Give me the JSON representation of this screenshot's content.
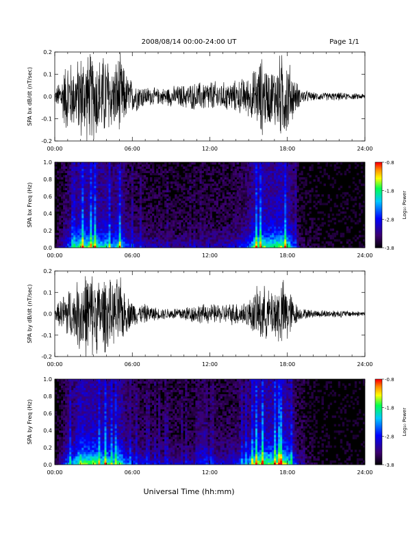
{
  "header": {
    "title": "2008/08/14   00:00-24:00 UT",
    "page": "Page 1/1"
  },
  "xlabel": "Universal Time (hh:mm)",
  "colorbar": {
    "label": "Log₁₀ Power",
    "ticks": [
      "-0.8",
      "-1.8",
      "-2.8",
      "-3.8"
    ],
    "range": [
      -3.8,
      -0.8
    ]
  },
  "chart_data": [
    {
      "type": "line",
      "ylabel": "SPA bx dB/dt (nT/sec)",
      "xticks": [
        "00:00",
        "06:00",
        "12:00",
        "18:00",
        "24:00"
      ],
      "xlim": [
        0,
        24
      ],
      "yticks": [
        "-0.2",
        "-0.1",
        "0.0",
        "0.1",
        "0.2"
      ],
      "ylim": [
        -0.2,
        0.2
      ],
      "envelope": {
        "t_hours": [
          0,
          0.5,
          1.0,
          1.5,
          2.0,
          2.5,
          3.0,
          3.5,
          4.0,
          4.5,
          5.0,
          5.5,
          6.0,
          6.5,
          7.0,
          8.0,
          9.0,
          10.0,
          11.0,
          12.0,
          13.0,
          14.0,
          15.0,
          15.5,
          16.0,
          16.5,
          17.0,
          17.5,
          18.0,
          18.5,
          19.0,
          20.0,
          21.0,
          22.0,
          23.0,
          24.0
        ],
        "amplitude": [
          0.03,
          0.1,
          0.2,
          0.15,
          0.22,
          0.22,
          0.22,
          0.2,
          0.22,
          0.15,
          0.22,
          0.12,
          0.08,
          0.07,
          0.05,
          0.04,
          0.05,
          0.06,
          0.07,
          0.08,
          0.07,
          0.08,
          0.1,
          0.14,
          0.2,
          0.14,
          0.15,
          0.22,
          0.2,
          0.1,
          0.04,
          0.02,
          0.02,
          0.02,
          0.015,
          0.015
        ]
      }
    },
    {
      "type": "heatmap",
      "ylabel": "SPA bx Freq (Hz)",
      "xticks": [
        "00:00",
        "06:00",
        "12:00",
        "18:00",
        "24:00"
      ],
      "xlim": [
        0,
        24
      ],
      "yticks": [
        "0.0",
        "0.2",
        "0.4",
        "0.6",
        "0.8",
        "1.0"
      ],
      "ylim": [
        0,
        1.0
      ],
      "activity": {
        "t_hours": [
          0,
          1,
          1.5,
          2,
          2.5,
          3,
          3.5,
          4,
          4.5,
          5,
          5.5,
          6,
          7,
          9,
          11,
          12,
          13,
          14,
          15,
          15.5,
          16,
          16.5,
          17,
          17.5,
          18,
          18.5,
          19,
          21,
          24
        ],
        "level": [
          0.05,
          0.5,
          0.6,
          0.9,
          0.8,
          0.9,
          0.7,
          0.8,
          0.6,
          0.8,
          0.5,
          0.4,
          0.3,
          0.25,
          0.25,
          0.3,
          0.3,
          0.35,
          0.55,
          0.85,
          0.9,
          0.8,
          0.85,
          0.9,
          0.8,
          0.5,
          0.15,
          0.05,
          0.05
        ]
      }
    },
    {
      "type": "line",
      "ylabel": "SPA by dB/dt (nT/sec)",
      "xticks": [
        "00:00",
        "06:00",
        "12:00",
        "18:00",
        "24:00"
      ],
      "xlim": [
        0,
        24
      ],
      "yticks": [
        "-0.2",
        "-0.1",
        "0.0",
        "0.1",
        "0.2"
      ],
      "ylim": [
        -0.2,
        0.2
      ],
      "envelope": {
        "t_hours": [
          0,
          0.5,
          1.0,
          1.5,
          2.0,
          2.5,
          3.0,
          3.5,
          4.0,
          4.5,
          5.0,
          5.5,
          6.0,
          6.5,
          7.0,
          8.0,
          9.0,
          10.0,
          11.0,
          12.0,
          13.0,
          14.0,
          15.0,
          15.5,
          16.0,
          16.5,
          17.0,
          17.5,
          18.0,
          18.5,
          19.0,
          20.0,
          21.0,
          22.0,
          23.0,
          24.0
        ],
        "amplitude": [
          0.03,
          0.08,
          0.15,
          0.12,
          0.22,
          0.22,
          0.22,
          0.18,
          0.2,
          0.15,
          0.2,
          0.1,
          0.07,
          0.05,
          0.05,
          0.03,
          0.03,
          0.04,
          0.05,
          0.05,
          0.05,
          0.06,
          0.07,
          0.12,
          0.16,
          0.12,
          0.14,
          0.18,
          0.16,
          0.07,
          0.03,
          0.02,
          0.02,
          0.02,
          0.015,
          0.015
        ]
      }
    },
    {
      "type": "heatmap",
      "ylabel": "SPA by Freq (Hz)",
      "xticks": [
        "00:00",
        "06:00",
        "12:00",
        "18:00",
        "24:00"
      ],
      "xlim": [
        0,
        24
      ],
      "yticks": [
        "0.0",
        "0.2",
        "0.4",
        "0.6",
        "0.8",
        "1.0"
      ],
      "ylim": [
        0,
        1.0
      ],
      "activity": {
        "t_hours": [
          0,
          1,
          1.5,
          2,
          2.5,
          3,
          3.5,
          4,
          4.5,
          5,
          5.5,
          6,
          7,
          9,
          11,
          12,
          13,
          14,
          15,
          15.5,
          16,
          16.5,
          17,
          17.5,
          18,
          18.5,
          19,
          21,
          24
        ],
        "level": [
          0.05,
          0.55,
          0.65,
          0.95,
          0.85,
          0.9,
          0.75,
          0.85,
          0.7,
          0.85,
          0.55,
          0.45,
          0.35,
          0.3,
          0.3,
          0.35,
          0.35,
          0.4,
          0.6,
          0.9,
          0.95,
          0.85,
          0.9,
          0.95,
          0.85,
          0.55,
          0.2,
          0.05,
          0.05
        ]
      }
    }
  ]
}
